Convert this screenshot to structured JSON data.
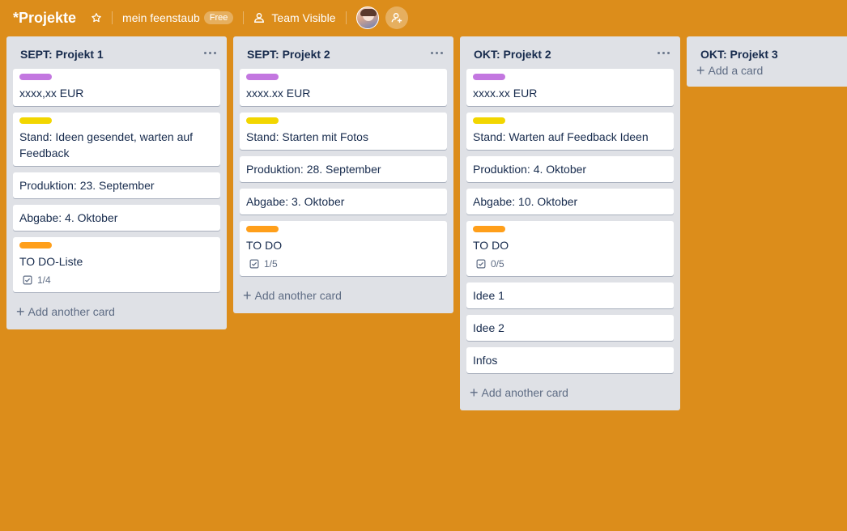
{
  "board": {
    "title": "*Projekte",
    "workspace": "mein feenstaub",
    "plan_badge": "Free",
    "visibility": "Team Visible"
  },
  "colors": {
    "background": "#DC8D1B",
    "purple": "#C377E0",
    "yellow": "#F2D600",
    "orange": "#FF9F1A"
  },
  "lists": [
    {
      "title": "SEPT: Projekt 1",
      "add_label": "Add another card",
      "cards": [
        {
          "text": "xxxx,xx EUR",
          "label": "purple"
        },
        {
          "text": "Stand: Ideen gesendet, warten auf Feedback",
          "label": "yellow"
        },
        {
          "text": "Produktion: 23. September"
        },
        {
          "text": "Abgabe: 4. Oktober"
        },
        {
          "text": "TO DO-Liste",
          "label": "orange",
          "checklist": "1/4"
        }
      ]
    },
    {
      "title": "SEPT: Projekt 2",
      "add_label": "Add another card",
      "cards": [
        {
          "text": "xxxx.xx EUR",
          "label": "purple"
        },
        {
          "text": "Stand: Starten mit Fotos",
          "label": "yellow"
        },
        {
          "text": "Produktion: 28. September"
        },
        {
          "text": "Abgabe: 3. Oktober"
        },
        {
          "text": "TO DO",
          "label": "orange",
          "checklist": "1/5"
        }
      ]
    },
    {
      "title": "OKT: Projekt 2",
      "add_label": "Add another card",
      "cards": [
        {
          "text": "xxxx.xx EUR",
          "label": "purple"
        },
        {
          "text": "Stand: Warten auf Feedback Ideen",
          "label": "yellow"
        },
        {
          "text": "Produktion: 4. Oktober"
        },
        {
          "text": "Abgabe: 10. Oktober"
        },
        {
          "text": "TO DO",
          "label": "orange",
          "checklist": "0/5"
        },
        {
          "text": "Idee 1"
        },
        {
          "text": "Idee 2"
        },
        {
          "text": "Infos"
        }
      ]
    },
    {
      "title": "OKT: Projekt 3",
      "add_label": "Add a card",
      "cards": []
    }
  ]
}
